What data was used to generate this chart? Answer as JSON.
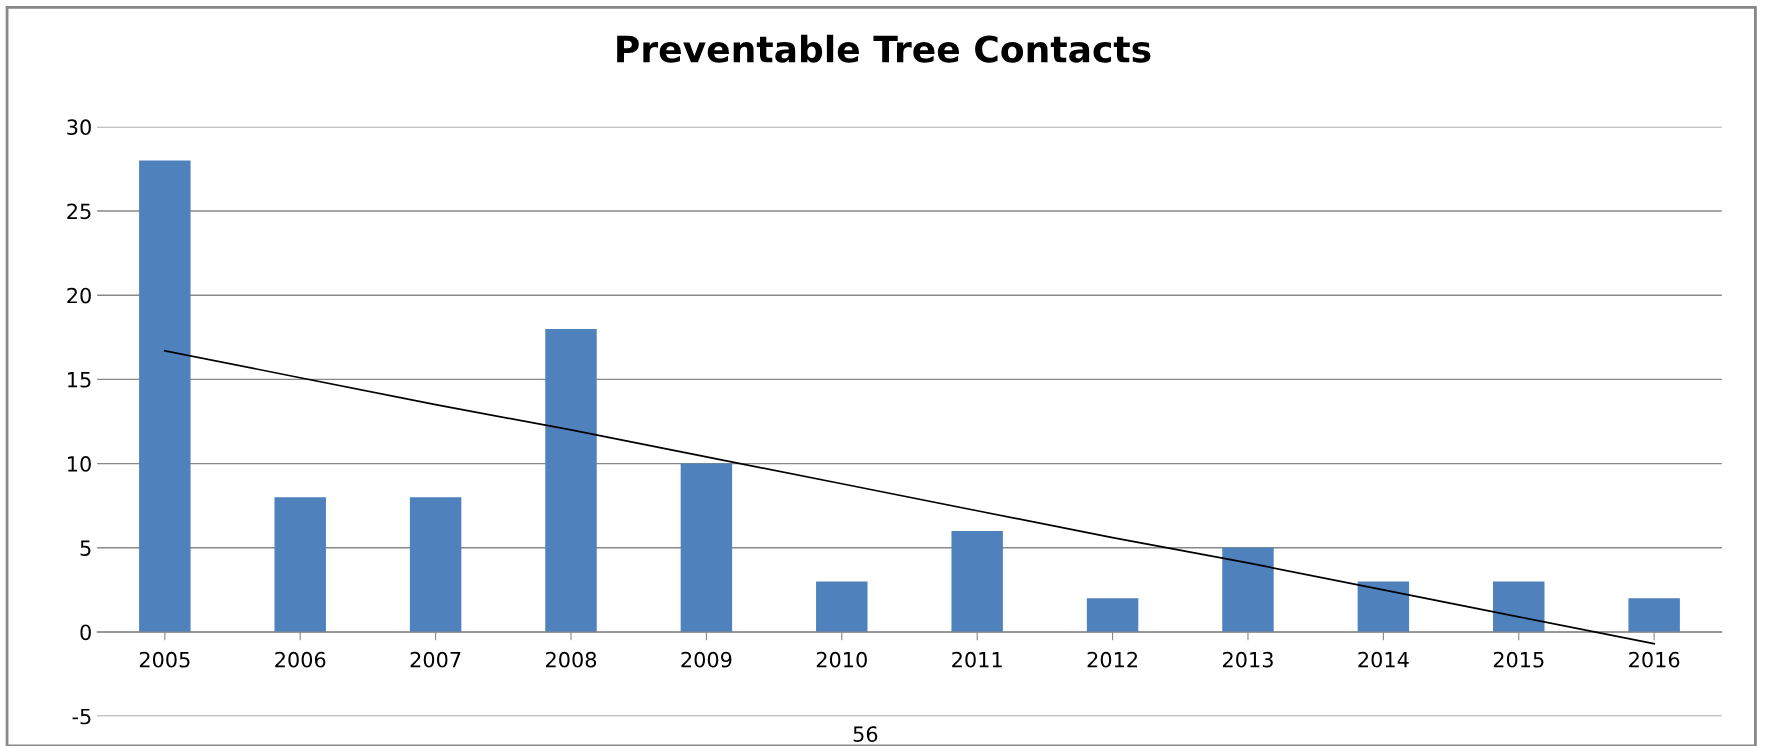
{
  "chart_data": {
    "type": "bar",
    "title": "Preventable Tree Contacts",
    "categories": [
      "2005",
      "2006",
      "2007",
      "2008",
      "2009",
      "2010",
      "2011",
      "2012",
      "2013",
      "2014",
      "2015",
      "2016"
    ],
    "series": [
      {
        "color": "#4f81bd",
        "values": [
          28,
          8,
          8,
          18,
          10,
          3,
          6,
          2,
          5,
          3,
          3,
          2
        ]
      },
      {
        "type": "line",
        "color": "#000000",
        "values": [
          16.7,
          15.1,
          13.5,
          12.0,
          10.4,
          8.8,
          7.2,
          5.6,
          4.1,
          2.5,
          0.9,
          -0.7
        ]
      }
    ],
    "ylim": [
      -5,
      30
    ],
    "yticks": [
      -5,
      0,
      5,
      10,
      15,
      20,
      25,
      30
    ],
    "grid": "y",
    "annotations": [
      "56"
    ]
  }
}
